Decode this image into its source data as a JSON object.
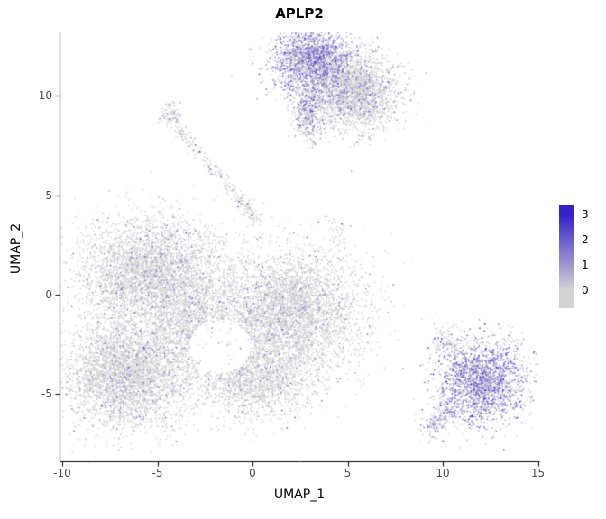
{
  "chart_data": {
    "type": "scatter",
    "title": "APLP2",
    "subtitle": "",
    "xlabel": "UMAP_1",
    "ylabel": "UMAP_2",
    "xlim": [
      -10.1,
      15.0
    ],
    "ylim": [
      -8.4,
      13.2
    ],
    "xticks": [
      -10,
      -5,
      0,
      5,
      10,
      15
    ],
    "yticks": [
      -5,
      0,
      5,
      10
    ],
    "grid": false,
    "background": "#ffffff",
    "legend": {
      "position": "right",
      "labels": [
        3,
        2,
        1,
        0
      ],
      "vmin": 0,
      "vmax": 3,
      "low_color": "#d3d3d3",
      "high_color": "#3620c8"
    },
    "description": "Single-cell UMAP feature plot; each point is a cell colored by APLP2 expression from 0 (grey) to 3 (blue).",
    "hole": {
      "center": [
        -1.7,
        -2.6
      ],
      "rx": 1.6,
      "ry": 1.35
    },
    "clusters": [
      {
        "name": "top-lobe-left",
        "shape": "gauss",
        "center": [
          3.1,
          11.8
        ],
        "sd": [
          1.0,
          0.78
        ],
        "n": 2000,
        "color_frac": 0.5,
        "expr": [
          1.1,
          3.2
        ]
      },
      {
        "name": "top-lobe-right",
        "shape": "gauss",
        "center": [
          5.4,
          10.2
        ],
        "sd": [
          1.05,
          0.95
        ],
        "n": 2400,
        "color_frac": 0.14,
        "expr": [
          0.8,
          2.6
        ]
      },
      {
        "name": "top-lobe-neck",
        "shape": "gauss",
        "center": [
          3.0,
          9.7
        ],
        "sd": [
          0.5,
          0.55
        ],
        "n": 400,
        "color_frac": 0.42,
        "expr": [
          1.0,
          3.0
        ]
      },
      {
        "name": "top-appendage",
        "shape": "gauss",
        "center": [
          2.9,
          8.6
        ],
        "sd": [
          0.38,
          0.45
        ],
        "n": 180,
        "color_frac": 0.3,
        "expr": [
          0.9,
          2.6
        ]
      },
      {
        "name": "streak-clump",
        "shape": "gauss",
        "center": [
          -4.3,
          9.0
        ],
        "sd": [
          0.3,
          0.28
        ],
        "n": 90,
        "color_frac": 0.3,
        "expr": [
          0.9,
          2.6
        ]
      },
      {
        "name": "streak",
        "shape": "line",
        "p1": [
          -4.1,
          8.6
        ],
        "p2": [
          0.4,
          3.6
        ],
        "width": 0.17,
        "n": 260,
        "color_frac": 0.14,
        "expr": [
          0.8,
          2.2
        ]
      },
      {
        "name": "mini-cluster",
        "shape": "gauss",
        "center": [
          4.5,
          3.0
        ],
        "sd": [
          0.28,
          0.55
        ],
        "n": 35,
        "color_frac": 0.2,
        "expr": [
          0.8,
          2.0
        ]
      },
      {
        "name": "main-upper-left",
        "shape": "gauss",
        "center": [
          -5.3,
          1.1
        ],
        "sd": [
          1.85,
          1.35
        ],
        "n": 3800,
        "color_frac": 0.09,
        "expr": [
          0.8,
          2.8
        ],
        "in_hole_region": true
      },
      {
        "name": "main-lower-left",
        "shape": "gauss",
        "center": [
          -6.6,
          -3.9
        ],
        "sd": [
          1.6,
          1.4
        ],
        "n": 3800,
        "color_frac": 0.1,
        "expr": [
          0.8,
          2.8
        ],
        "in_hole_region": true
      },
      {
        "name": "main-right",
        "shape": "gauss",
        "center": [
          1.9,
          -0.9
        ],
        "sd": [
          1.9,
          1.5
        ],
        "n": 4200,
        "color_frac": 0.1,
        "expr": [
          0.8,
          2.8
        ],
        "in_hole_region": true
      },
      {
        "name": "main-bottom",
        "shape": "gauss",
        "center": [
          0.2,
          -4.3
        ],
        "sd": [
          1.5,
          0.95
        ],
        "n": 1600,
        "color_frac": 0.08,
        "expr": [
          0.8,
          2.6
        ],
        "in_hole_region": true
      },
      {
        "name": "main-center-fill",
        "shape": "gauss",
        "center": [
          -3.0,
          -1.5
        ],
        "sd": [
          1.25,
          1.2
        ],
        "n": 1400,
        "color_frac": 0.08,
        "expr": [
          0.8,
          2.6
        ],
        "in_hole_region": true
      },
      {
        "name": "right-cluster-core",
        "shape": "gauss",
        "center": [
          12.1,
          -4.4
        ],
        "sd": [
          1.15,
          1.0
        ],
        "n": 2200,
        "color_frac": 0.55,
        "expr": [
          1.2,
          3.2
        ]
      },
      {
        "name": "right-cluster-tail",
        "shape": "line",
        "p1": [
          9.2,
          -6.9
        ],
        "p2": [
          10.7,
          -5.3
        ],
        "width": 0.3,
        "n": 240,
        "color_frac": 0.35,
        "expr": [
          1.0,
          2.8
        ]
      },
      {
        "name": "right-cluster-nub",
        "shape": "gauss",
        "center": [
          10.3,
          -2.4
        ],
        "sd": [
          0.45,
          0.5
        ],
        "n": 130,
        "color_frac": 0.3,
        "expr": [
          0.9,
          2.6
        ]
      },
      {
        "name": "right-outlier-specks",
        "shape": "gauss",
        "center": [
          13.6,
          -2.2
        ],
        "sd": [
          0.3,
          0.22
        ],
        "n": 25,
        "color_frac": 0.1,
        "expr": [
          0.6,
          1.5
        ]
      }
    ]
  }
}
